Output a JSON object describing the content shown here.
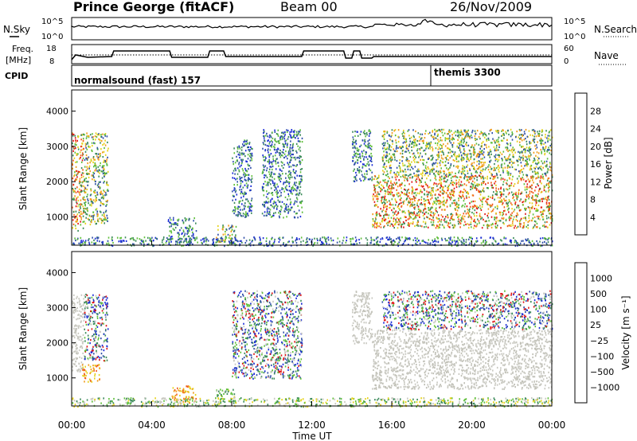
{
  "header": {
    "station": "Prince George (fitACF)",
    "beam": "Beam 00",
    "date": "26/Nov/2009"
  },
  "noise_panel": {
    "left_label": "N.Sky",
    "right_label": "N.Search",
    "left_ticks": [
      "10^5",
      "10^0"
    ],
    "right_ticks": [
      "10^5",
      "10^0"
    ]
  },
  "freq_panel": {
    "label_line1": "Freq.",
    "label_line2": "[MHz]",
    "left_ticks": [
      "18",
      "8"
    ],
    "right_label": "Nave",
    "right_ticks": [
      "60",
      "0"
    ]
  },
  "cpid_panel": {
    "label": "CPID",
    "modes": [
      {
        "name": "normalsound (fast) 157",
        "start_hour": 0
      },
      {
        "name": "themis 3300",
        "start_hour": 18.0
      }
    ]
  },
  "chart_data": [
    {
      "type": "heatmap",
      "panel": "power",
      "ylabel": "Slant Range [km]",
      "ylim": [
        200,
        4600
      ],
      "yticks": [
        "1000",
        "2000",
        "3000",
        "4000"
      ],
      "xlim": [
        0,
        24
      ],
      "xticks": [
        "00:00",
        "04:00",
        "08:00",
        "12:00",
        "16:00",
        "20:00",
        "00:00"
      ],
      "colorbar": {
        "label": "Power [dB]",
        "ticks": [
          "4",
          "8",
          "12",
          "16",
          "20",
          "24",
          "28"
        ],
        "colors": [
          "#1a2bd8",
          "#2f4fa8",
          "#3b8a5a",
          "#5fbf3a",
          "#e5d21a",
          "#f09a1a",
          "#f05a1a",
          "#e01515"
        ]
      },
      "regions": [
        {
          "t0": 0.0,
          "t1": 0.6,
          "r0": 600,
          "r1": 3400,
          "level": "high"
        },
        {
          "t0": 0.6,
          "t1": 1.8,
          "r0": 800,
          "r1": 3400,
          "level": "mid"
        },
        {
          "t0": 4.8,
          "t1": 6.2,
          "r0": 300,
          "r1": 1000,
          "level": "low"
        },
        {
          "t0": 7.2,
          "t1": 8.2,
          "r0": 300,
          "r1": 800,
          "level": "mid"
        },
        {
          "t0": 8.0,
          "t1": 9.0,
          "r0": 1000,
          "r1": 3200,
          "level": "low"
        },
        {
          "t0": 9.5,
          "t1": 11.5,
          "r0": 1000,
          "r1": 3500,
          "level": "low"
        },
        {
          "t0": 14.0,
          "t1": 15.0,
          "r0": 2000,
          "r1": 3500,
          "level": "low"
        },
        {
          "t0": 15.0,
          "t1": 24.0,
          "r0": 700,
          "r1": 2200,
          "level": "high"
        },
        {
          "t0": 15.5,
          "t1": 24.0,
          "r0": 2200,
          "r1": 3500,
          "level": "mid"
        },
        {
          "t0": 0.0,
          "t1": 24.0,
          "r0": 200,
          "r1": 450,
          "level": "low"
        }
      ]
    },
    {
      "type": "heatmap",
      "panel": "velocity",
      "ylabel": "Slant Range [km]",
      "ylim": [
        200,
        4600
      ],
      "yticks": [
        "1000",
        "2000",
        "3000",
        "4000"
      ],
      "xlim": [
        0,
        24
      ],
      "xticks": [
        "00:00",
        "04:00",
        "08:00",
        "12:00",
        "16:00",
        "20:00",
        "00:00"
      ],
      "xlabel": "Time UT",
      "colorbar": {
        "label": "Velocity [m s⁻¹]",
        "ticks": [
          "1000",
          "500",
          "100",
          "25",
          "−25",
          "−100",
          "−500",
          "−1000"
        ],
        "colors": [
          "#1a2bd8",
          "#2f4fa8",
          "#3b8a5a",
          "#5fbf3a",
          "#c8c8c0",
          "#e5d21a",
          "#f09a1a",
          "#f05a1a",
          "#e01515"
        ]
      },
      "regions": [
        {
          "t0": 0.0,
          "t1": 0.6,
          "r0": 1200,
          "r1": 3400,
          "level": "gray"
        },
        {
          "t0": 0.5,
          "t1": 1.4,
          "r0": 900,
          "r1": 1400,
          "level": "orange"
        },
        {
          "t0": 0.6,
          "t1": 1.8,
          "r0": 1500,
          "r1": 3400,
          "level": "mixed"
        },
        {
          "t0": 5.0,
          "t1": 6.2,
          "r0": 300,
          "r1": 800,
          "level": "orange"
        },
        {
          "t0": 7.2,
          "t1": 8.2,
          "r0": 300,
          "r1": 700,
          "level": "green"
        },
        {
          "t0": 8.0,
          "t1": 11.5,
          "r0": 1000,
          "r1": 3500,
          "level": "mixed"
        },
        {
          "t0": 14.0,
          "t1": 15.0,
          "r0": 2000,
          "r1": 3500,
          "level": "gray"
        },
        {
          "t0": 15.0,
          "t1": 24.0,
          "r0": 700,
          "r1": 2400,
          "level": "gray"
        },
        {
          "t0": 15.5,
          "t1": 24.0,
          "r0": 2400,
          "r1": 3500,
          "level": "mixed"
        },
        {
          "t0": 0.0,
          "t1": 24.0,
          "r0": 200,
          "r1": 450,
          "level": "green"
        }
      ]
    }
  ]
}
